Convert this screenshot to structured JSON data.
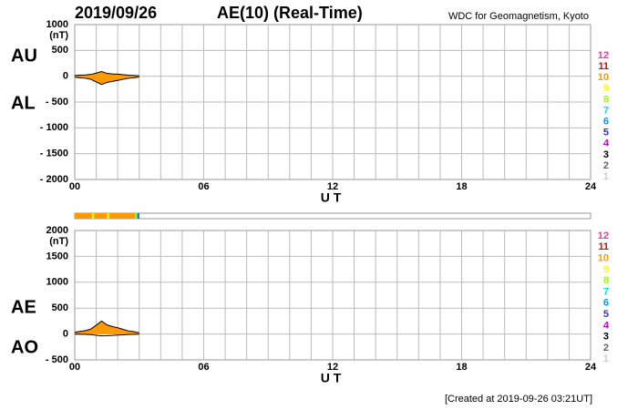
{
  "header": {
    "date": "2019/09/26",
    "title": "AE(10) (Real-Time)",
    "source": "WDC for Geomagnetism, Kyoto"
  },
  "footer": "[Created at 2019-09-26 03:21UT]",
  "station_legend": [
    {
      "count": 12,
      "color": "#ff3399"
    },
    {
      "count": 11,
      "color": "#e60000"
    },
    {
      "count": 10,
      "color": "#ff9900"
    },
    {
      "count": 9,
      "color": "#ffff00"
    },
    {
      "count": 8,
      "color": "#99ff00"
    },
    {
      "count": 7,
      "color": "#00e5e5"
    },
    {
      "count": 6,
      "color": "#0099ff"
    },
    {
      "count": 5,
      "color": "#3333cc"
    },
    {
      "count": 4,
      "color": "#cc00cc"
    },
    {
      "count": 3,
      "color": "#000000"
    },
    {
      "count": 2,
      "color": "#666666"
    },
    {
      "count": 1,
      "color": "#cccccc"
    }
  ],
  "station_strip": {
    "bins": [
      0,
      0.8,
      0.9,
      1.5,
      1.6,
      2.8,
      2.9,
      2.95,
      3.0
    ],
    "values": [
      10,
      9,
      10,
      9,
      10,
      8,
      6,
      5
    ]
  },
  "chart_data": [
    {
      "type": "area",
      "ylabel": "(nT)",
      "xlabel": "U T",
      "x": [
        0,
        0.25,
        0.5,
        0.75,
        1.0,
        1.25,
        1.5,
        1.75,
        2.0,
        2.25,
        2.5,
        2.75,
        3.0
      ],
      "series": [
        {
          "name": "AU",
          "color": "#ff9900",
          "values": [
            15,
            20,
            25,
            35,
            60,
            90,
            55,
            45,
            40,
            30,
            20,
            15,
            10
          ]
        },
        {
          "name": "AL",
          "color": "#ff9900",
          "values": [
            -20,
            -30,
            -40,
            -60,
            -110,
            -160,
            -120,
            -100,
            -80,
            -60,
            -40,
            -30,
            -15
          ]
        }
      ],
      "xlim": [
        0,
        24
      ],
      "xticks": [
        {
          "value": 0,
          "label": "00"
        },
        {
          "value": 6,
          "label": "06"
        },
        12,
        18,
        24
      ],
      "xgrid": [
        0,
        1,
        2,
        3,
        4,
        5,
        6,
        7,
        8,
        9,
        10,
        11,
        12,
        13,
        14,
        15,
        16,
        17,
        18,
        19,
        20,
        21,
        22,
        23,
        24
      ],
      "ylim": [
        -2000,
        1000
      ],
      "yticks": [
        1000,
        500,
        0,
        {
          "value": -500,
          "label": "- 500"
        },
        {
          "value": -1000,
          "label": "- 1000"
        },
        {
          "value": -1500,
          "label": "- 1500"
        },
        {
          "value": -2000,
          "label": "- 2000"
        }
      ],
      "grid": true
    },
    {
      "type": "area",
      "ylabel": "(nT)",
      "xlabel": "U T",
      "x": [
        0,
        0.25,
        0.5,
        0.75,
        1.0,
        1.25,
        1.5,
        1.75,
        2.0,
        2.25,
        2.5,
        2.75,
        3.0
      ],
      "series": [
        {
          "name": "AE",
          "color": "#ff9900",
          "values": [
            35,
            50,
            65,
            95,
            170,
            250,
            175,
            145,
            120,
            90,
            60,
            45,
            25
          ]
        },
        {
          "name": "AO",
          "color": "#000000",
          "values": [
            -2.5,
            -5,
            -7.5,
            -12.5,
            -25,
            -35,
            -32.5,
            -27.5,
            -20,
            -15,
            -10,
            -7.5,
            -2.5
          ]
        }
      ],
      "xlim": [
        0,
        24
      ],
      "xticks": [
        {
          "value": 0,
          "label": "00"
        },
        {
          "value": 6,
          "label": "06"
        },
        12,
        18,
        24
      ],
      "xgrid": [
        0,
        1,
        2,
        3,
        4,
        5,
        6,
        7,
        8,
        9,
        10,
        11,
        12,
        13,
        14,
        15,
        16,
        17,
        18,
        19,
        20,
        21,
        22,
        23,
        24
      ],
      "ylim": [
        -500,
        2000
      ],
      "yticks": [
        2000,
        1500,
        1000,
        500,
        0,
        {
          "value": -500,
          "label": "- 500"
        }
      ],
      "grid": true
    }
  ]
}
